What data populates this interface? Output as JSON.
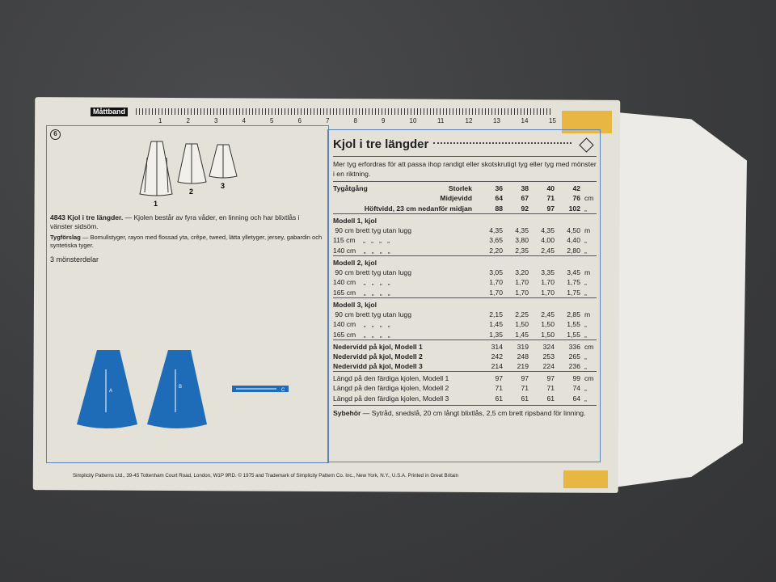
{
  "ruler": {
    "label": "Måttband",
    "numbers": [
      "1",
      "2",
      "3",
      "4",
      "5",
      "6",
      "7",
      "8",
      "9",
      "10",
      "11",
      "12",
      "13",
      "14",
      "15"
    ]
  },
  "views": {
    "badge": "6",
    "labels": [
      "1",
      "2",
      "3"
    ]
  },
  "description": {
    "title": "4843  Kjol i tre längder.",
    "body": " — Kjolen består av fyra våder, en linning och har blixtlås i vänster sidsöm.",
    "fabrics_label": "Tygförslag",
    "fabrics": " — Bomullstyger, rayon med flossad yta, crêpe, tweed, lätta ylletyger, jersey, gabardin och syntetiska tyger.",
    "pieces": "3 mönsterdelar"
  },
  "piece_letters": [
    "A",
    "B",
    "C"
  ],
  "colors": {
    "piece_blue": "#1e6bb8",
    "border_blue": "#5b82b8",
    "tape": "#e8b642"
  },
  "footer": "Simplicity Patterns Ltd., 39-45 Tottenham Court Road, London, W1P 9RD.  © 1975 and Trademark of Simplicity Pattern Co. Inc., New York, N.Y., U.S.A.   Printed in Great Britain",
  "chart": {
    "title": "Kjol i tre längder",
    "intro": "Mer tyg erfordras för att passa ihop randigt eller skotskrutigt tyg eller tyg med mönster i en riktning.",
    "rows": [
      {
        "t": "Tygåtgång",
        "b": true,
        "v": []
      },
      {
        "t": "Storlek",
        "b": true,
        "r": true,
        "v": [
          "36",
          "38",
          "40",
          "42"
        ],
        "u": ""
      },
      {
        "t": "Midjevidd",
        "b": true,
        "r": true,
        "v": [
          "64",
          "67",
          "71",
          "76"
        ],
        "u": "cm"
      },
      {
        "t": "Höftvidd, 23 cm nedanför midjan",
        "b": true,
        "r": true,
        "v": [
          "88",
          "92",
          "97",
          "102"
        ],
        "u": "„"
      },
      {
        "t": "Modell 1, kjol",
        "b": true,
        "v": []
      },
      {
        "t": " 90 cm brett tyg utan lugg",
        "v": [
          "4,35",
          "4,35",
          "4,35",
          "4,50"
        ],
        "u": "m"
      },
      {
        "t": "115 cm    „   „   „   „",
        "v": [
          "3,65",
          "3,80",
          "4,00",
          "4,40"
        ],
        "u": "„"
      },
      {
        "t": "140 cm    „   „   „   „",
        "v": [
          "2,20",
          "2,35",
          "2,45",
          "2,80"
        ],
        "u": "„"
      },
      {
        "t": "Modell 2, kjol",
        "b": true,
        "v": []
      },
      {
        "t": " 90 cm brett tyg utan lugg",
        "v": [
          "3,05",
          "3,20",
          "3,35",
          "3,45"
        ],
        "u": "m"
      },
      {
        "t": "140 cm    „   „   „   „",
        "v": [
          "1,70",
          "1,70",
          "1,70",
          "1,75"
        ],
        "u": "„"
      },
      {
        "t": "165 cm    „   „   „   „",
        "v": [
          "1,70",
          "1,70",
          "1,70",
          "1,75"
        ],
        "u": "„"
      },
      {
        "t": "Modell 3, kjol",
        "b": true,
        "v": []
      },
      {
        "t": " 90 cm brett tyg utan lugg",
        "v": [
          "2,15",
          "2,25",
          "2,45",
          "2,85"
        ],
        "u": "m"
      },
      {
        "t": "140 cm    „   „   „   „",
        "v": [
          "1,45",
          "1,50",
          "1,50",
          "1,55"
        ],
        "u": "„"
      },
      {
        "t": "165 cm    „   „   „   „",
        "v": [
          "1,35",
          "1,45",
          "1,50",
          "1,55"
        ],
        "u": "„"
      },
      {
        "t": "Nedervidd på kjol, Modell 1",
        "b": true,
        "v": [
          "314",
          "319",
          "324",
          "336"
        ],
        "u": "cm"
      },
      {
        "t": "Nedervidd på kjol, Modell 2",
        "b": true,
        "v": [
          "242",
          "248",
          "253",
          "265"
        ],
        "u": "„"
      },
      {
        "t": "Nedervidd på kjol, Modell 3",
        "b": true,
        "v": [
          "214",
          "219",
          "224",
          "236"
        ],
        "u": "„"
      },
      {
        "t": "Längd på den färdiga kjolen, Modell 1",
        "v": [
          "97",
          "97",
          "97",
          "99"
        ],
        "u": "cm"
      },
      {
        "t": "Längd på den färdiga kjolen, Modell 2",
        "v": [
          "71",
          "71",
          "71",
          "74"
        ],
        "u": "„"
      },
      {
        "t": "Längd på den färdiga kjolen, Modell 3",
        "v": [
          "61",
          "61",
          "61",
          "64"
        ],
        "u": "„"
      }
    ],
    "notions_label": "Sybehör",
    "notions": " — Sytråd, snedslå, 20 cm långt blixtlås, 2,5 cm brett ripsband för linning."
  }
}
